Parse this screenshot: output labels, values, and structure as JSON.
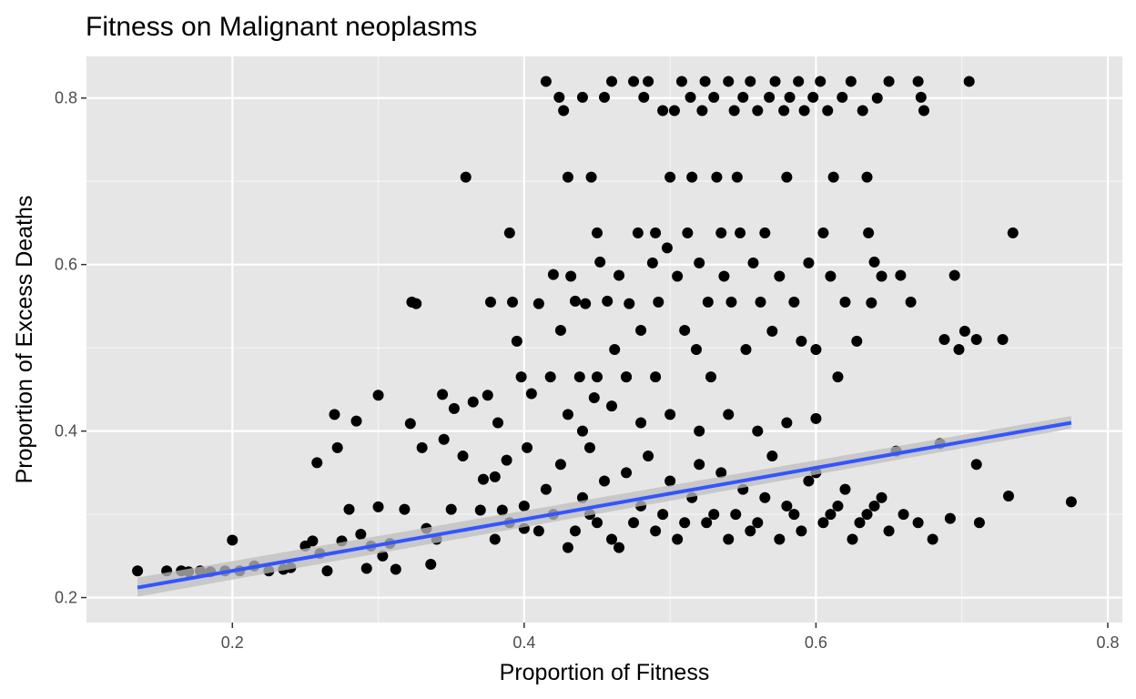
{
  "chart_data": {
    "type": "scatter",
    "title": "Fitness on Malignant neoplasms",
    "xlabel": "Proportion of Fitness",
    "ylabel": "Proportion of Excess Deaths",
    "xlim": [
      0.1,
      0.81
    ],
    "ylim": [
      0.17,
      0.85
    ],
    "x_ticks": [
      0.2,
      0.4,
      0.6,
      0.8
    ],
    "y_ticks": [
      0.2,
      0.4,
      0.6,
      0.8
    ],
    "grid": true,
    "legend": "none",
    "colors": {
      "panel": "#e6e6e6",
      "grid_major": "#ffffff",
      "points": "#000000",
      "fit_line": "#3355ff",
      "ci_band": "#bdbdbd"
    },
    "trend_line": {
      "method": "linear",
      "x": [
        0.135,
        0.775
      ],
      "y": [
        0.212,
        0.41
      ],
      "ci_lower": [
        0.201,
        0.403
      ],
      "ci_upper": [
        0.224,
        0.418
      ]
    },
    "series": [
      {
        "values": [
          [
            0.135,
            0.232
          ],
          [
            0.155,
            0.232
          ],
          [
            0.165,
            0.232
          ],
          [
            0.17,
            0.231
          ],
          [
            0.178,
            0.232
          ],
          [
            0.185,
            0.231
          ],
          [
            0.195,
            0.232
          ],
          [
            0.2,
            0.269
          ],
          [
            0.205,
            0.232
          ],
          [
            0.215,
            0.238
          ],
          [
            0.225,
            0.232
          ],
          [
            0.235,
            0.234
          ],
          [
            0.24,
            0.236
          ],
          [
            0.25,
            0.262
          ],
          [
            0.255,
            0.268
          ],
          [
            0.258,
            0.362
          ],
          [
            0.26,
            0.253
          ],
          [
            0.265,
            0.232
          ],
          [
            0.27,
            0.42
          ],
          [
            0.272,
            0.38
          ],
          [
            0.275,
            0.268
          ],
          [
            0.28,
            0.306
          ],
          [
            0.285,
            0.412
          ],
          [
            0.288,
            0.276
          ],
          [
            0.292,
            0.235
          ],
          [
            0.295,
            0.262
          ],
          [
            0.3,
            0.443
          ],
          [
            0.3,
            0.309
          ],
          [
            0.303,
            0.25
          ],
          [
            0.308,
            0.265
          ],
          [
            0.312,
            0.234
          ],
          [
            0.318,
            0.306
          ],
          [
            0.322,
            0.409
          ],
          [
            0.323,
            0.555
          ],
          [
            0.326,
            0.553
          ],
          [
            0.33,
            0.38
          ],
          [
            0.333,
            0.283
          ],
          [
            0.336,
            0.24
          ],
          [
            0.34,
            0.27
          ],
          [
            0.344,
            0.444
          ],
          [
            0.345,
            0.39
          ],
          [
            0.35,
            0.306
          ],
          [
            0.352,
            0.427
          ],
          [
            0.358,
            0.37
          ],
          [
            0.36,
            0.705
          ],
          [
            0.365,
            0.435
          ],
          [
            0.37,
            0.305
          ],
          [
            0.372,
            0.342
          ],
          [
            0.375,
            0.443
          ],
          [
            0.377,
            0.555
          ],
          [
            0.38,
            0.345
          ],
          [
            0.382,
            0.41
          ],
          [
            0.385,
            0.305
          ],
          [
            0.388,
            0.365
          ],
          [
            0.39,
            0.638
          ],
          [
            0.392,
            0.555
          ],
          [
            0.395,
            0.508
          ],
          [
            0.398,
            0.465
          ],
          [
            0.4,
            0.283
          ],
          [
            0.402,
            0.38
          ],
          [
            0.405,
            0.445
          ],
          [
            0.41,
            0.553
          ],
          [
            0.415,
            0.82
          ],
          [
            0.418,
            0.465
          ],
          [
            0.42,
            0.588
          ],
          [
            0.424,
            0.801
          ],
          [
            0.425,
            0.521
          ],
          [
            0.427,
            0.785
          ],
          [
            0.43,
            0.705
          ],
          [
            0.432,
            0.586
          ],
          [
            0.435,
            0.556
          ],
          [
            0.438,
            0.465
          ],
          [
            0.44,
            0.801
          ],
          [
            0.442,
            0.553
          ],
          [
            0.445,
            0.38
          ],
          [
            0.446,
            0.705
          ],
          [
            0.448,
            0.44
          ],
          [
            0.45,
            0.638
          ],
          [
            0.452,
            0.603
          ],
          [
            0.455,
            0.801
          ],
          [
            0.457,
            0.556
          ],
          [
            0.46,
            0.82
          ],
          [
            0.462,
            0.498
          ],
          [
            0.465,
            0.587
          ],
          [
            0.47,
            0.465
          ],
          [
            0.472,
            0.553
          ],
          [
            0.475,
            0.82
          ],
          [
            0.478,
            0.638
          ],
          [
            0.48,
            0.521
          ],
          [
            0.482,
            0.801
          ],
          [
            0.485,
            0.82
          ],
          [
            0.488,
            0.602
          ],
          [
            0.49,
            0.638
          ],
          [
            0.492,
            0.555
          ],
          [
            0.495,
            0.785
          ],
          [
            0.498,
            0.62
          ],
          [
            0.5,
            0.705
          ],
          [
            0.503,
            0.785
          ],
          [
            0.505,
            0.586
          ],
          [
            0.508,
            0.82
          ],
          [
            0.51,
            0.521
          ],
          [
            0.512,
            0.638
          ],
          [
            0.514,
            0.801
          ],
          [
            0.515,
            0.705
          ],
          [
            0.518,
            0.498
          ],
          [
            0.52,
            0.602
          ],
          [
            0.522,
            0.785
          ],
          [
            0.524,
            0.82
          ],
          [
            0.526,
            0.555
          ],
          [
            0.528,
            0.465
          ],
          [
            0.53,
            0.801
          ],
          [
            0.532,
            0.705
          ],
          [
            0.535,
            0.638
          ],
          [
            0.537,
            0.586
          ],
          [
            0.54,
            0.82
          ],
          [
            0.542,
            0.555
          ],
          [
            0.544,
            0.785
          ],
          [
            0.546,
            0.705
          ],
          [
            0.548,
            0.638
          ],
          [
            0.55,
            0.801
          ],
          [
            0.552,
            0.498
          ],
          [
            0.555,
            0.82
          ],
          [
            0.557,
            0.602
          ],
          [
            0.56,
            0.785
          ],
          [
            0.562,
            0.555
          ],
          [
            0.565,
            0.638
          ],
          [
            0.568,
            0.801
          ],
          [
            0.57,
            0.52
          ],
          [
            0.572,
            0.82
          ],
          [
            0.575,
            0.586
          ],
          [
            0.578,
            0.785
          ],
          [
            0.58,
            0.705
          ],
          [
            0.582,
            0.801
          ],
          [
            0.585,
            0.555
          ],
          [
            0.588,
            0.82
          ],
          [
            0.59,
            0.508
          ],
          [
            0.592,
            0.785
          ],
          [
            0.595,
            0.602
          ],
          [
            0.598,
            0.801
          ],
          [
            0.6,
            0.498
          ],
          [
            0.603,
            0.82
          ],
          [
            0.605,
            0.638
          ],
          [
            0.608,
            0.785
          ],
          [
            0.61,
            0.586
          ],
          [
            0.612,
            0.705
          ],
          [
            0.615,
            0.465
          ],
          [
            0.618,
            0.801
          ],
          [
            0.62,
            0.555
          ],
          [
            0.624,
            0.82
          ],
          [
            0.628,
            0.508
          ],
          [
            0.632,
            0.785
          ],
          [
            0.635,
            0.705
          ],
          [
            0.636,
            0.638
          ],
          [
            0.638,
            0.554
          ],
          [
            0.64,
            0.603
          ],
          [
            0.642,
            0.8
          ],
          [
            0.645,
            0.586
          ],
          [
            0.65,
            0.82
          ],
          [
            0.655,
            0.376
          ],
          [
            0.658,
            0.587
          ],
          [
            0.665,
            0.555
          ],
          [
            0.67,
            0.82
          ],
          [
            0.672,
            0.801
          ],
          [
            0.674,
            0.785
          ],
          [
            0.68,
            0.27
          ],
          [
            0.685,
            0.385
          ],
          [
            0.688,
            0.51
          ],
          [
            0.692,
            0.295
          ],
          [
            0.695,
            0.587
          ],
          [
            0.698,
            0.498
          ],
          [
            0.702,
            0.52
          ],
          [
            0.705,
            0.82
          ],
          [
            0.71,
            0.51
          ],
          [
            0.71,
            0.36
          ],
          [
            0.712,
            0.29
          ],
          [
            0.728,
            0.51
          ],
          [
            0.732,
            0.322
          ],
          [
            0.735,
            0.638
          ],
          [
            0.775,
            0.315
          ],
          [
            0.41,
            0.28
          ],
          [
            0.42,
            0.3
          ],
          [
            0.43,
            0.26
          ],
          [
            0.44,
            0.32
          ],
          [
            0.45,
            0.29
          ],
          [
            0.46,
            0.27
          ],
          [
            0.47,
            0.35
          ],
          [
            0.48,
            0.31
          ],
          [
            0.49,
            0.28
          ],
          [
            0.5,
            0.34
          ],
          [
            0.51,
            0.29
          ],
          [
            0.52,
            0.36
          ],
          [
            0.53,
            0.3
          ],
          [
            0.54,
            0.27
          ],
          [
            0.55,
            0.33
          ],
          [
            0.56,
            0.29
          ],
          [
            0.57,
            0.37
          ],
          [
            0.58,
            0.31
          ],
          [
            0.59,
            0.28
          ],
          [
            0.6,
            0.35
          ],
          [
            0.61,
            0.3
          ],
          [
            0.62,
            0.33
          ],
          [
            0.63,
            0.29
          ],
          [
            0.64,
            0.31
          ],
          [
            0.65,
            0.28
          ],
          [
            0.66,
            0.3
          ],
          [
            0.67,
            0.29
          ],
          [
            0.38,
            0.27
          ],
          [
            0.39,
            0.29
          ],
          [
            0.4,
            0.31
          ],
          [
            0.415,
            0.33
          ],
          [
            0.425,
            0.36
          ],
          [
            0.435,
            0.28
          ],
          [
            0.445,
            0.3
          ],
          [
            0.455,
            0.34
          ],
          [
            0.465,
            0.26
          ],
          [
            0.475,
            0.29
          ],
          [
            0.485,
            0.37
          ],
          [
            0.495,
            0.3
          ],
          [
            0.505,
            0.27
          ],
          [
            0.515,
            0.32
          ],
          [
            0.525,
            0.29
          ],
          [
            0.535,
            0.35
          ],
          [
            0.545,
            0.3
          ],
          [
            0.555,
            0.28
          ],
          [
            0.565,
            0.32
          ],
          [
            0.575,
            0.27
          ],
          [
            0.585,
            0.3
          ],
          [
            0.595,
            0.34
          ],
          [
            0.605,
            0.29
          ],
          [
            0.615,
            0.31
          ],
          [
            0.625,
            0.27
          ],
          [
            0.635,
            0.3
          ],
          [
            0.645,
            0.32
          ],
          [
            0.43,
            0.42
          ],
          [
            0.44,
            0.4
          ],
          [
            0.46,
            0.43
          ],
          [
            0.48,
            0.41
          ],
          [
            0.5,
            0.42
          ],
          [
            0.52,
            0.4
          ],
          [
            0.54,
            0.42
          ],
          [
            0.56,
            0.4
          ],
          [
            0.58,
            0.41
          ],
          [
            0.6,
            0.415
          ],
          [
            0.47,
            0.465
          ],
          [
            0.49,
            0.465
          ],
          [
            0.45,
            0.465
          ]
        ]
      }
    ]
  }
}
